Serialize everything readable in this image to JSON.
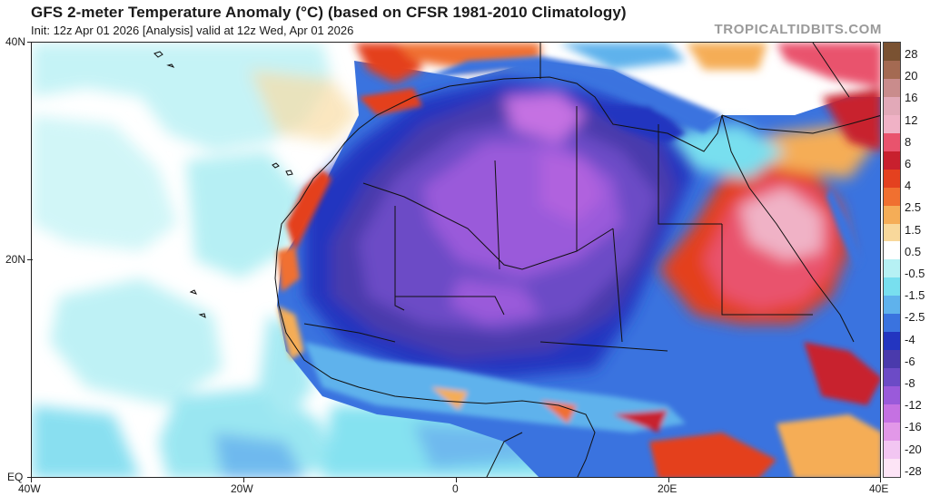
{
  "header": {
    "title": "GFS 2-meter Temperature Anomaly (°C) (based on CFSR 1981-2010 Climatology)",
    "subtitle": "Init: 12z Apr 01 2026   [Analysis]   valid at 12z Wed, Apr 01 2026",
    "brand": "TROPICALTIDBITS.COM"
  },
  "map": {
    "lat_labels": [
      "40N",
      "20N",
      "EQ"
    ],
    "lon_labels": [
      "40W",
      "20W",
      "0",
      "20E",
      "40E"
    ]
  },
  "colorbar": {
    "labels": [
      "28",
      "20",
      "16",
      "12",
      "8",
      "6",
      "4",
      "2.5",
      "1.5",
      "0.5",
      "-0.5",
      "-1.5",
      "-2.5",
      "-4",
      "-6",
      "-8",
      "-12",
      "-16",
      "-20",
      "-28"
    ],
    "colors": [
      "#7a5232",
      "#a46a52",
      "#c98c8c",
      "#e2a9b8",
      "#f0b2c6",
      "#e9536d",
      "#c8202e",
      "#e4411f",
      "#f07030",
      "#f5ad57",
      "#f8d89b",
      "#ffffff",
      "#b6f1f4",
      "#78dfef",
      "#5fb2ec",
      "#3a73df",
      "#2335c0",
      "#4a3aac",
      "#6c4bc6",
      "#9a5ada",
      "#c571e2",
      "#e298e8",
      "#f2c6f2",
      "#fde4f6"
    ]
  }
}
